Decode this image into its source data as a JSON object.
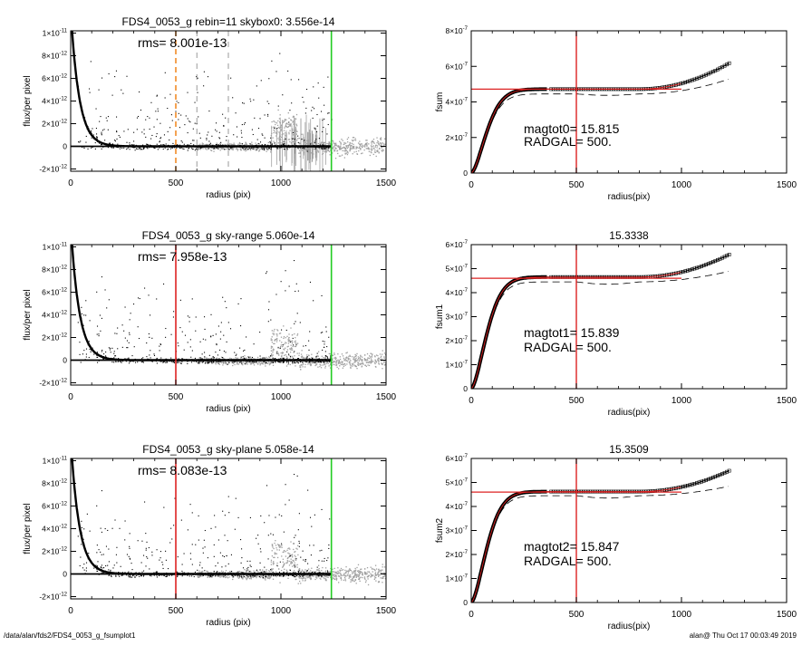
{
  "footer": {
    "path": "/data/alan/fds2/FDS4_0053_g_fsumplot1",
    "stamp": "alan@  Thu Oct 17 00:03:49 2019"
  },
  "colors": {
    "data": "#000000",
    "sky": "#a0a0a0",
    "mark_orange": "#f28c28",
    "mark_red": "#dd2222",
    "mark_green": "#22cc22",
    "fit": "#dd2222"
  },
  "chart_data": [
    {
      "type": "scatter",
      "title": "FDS4_0053_g rebin=11    skybox0:  3.556e-14",
      "annotations": [
        "rms= 8.001e-13"
      ],
      "xlabel": "radius (pix)",
      "ylabel": "flux/per pixel",
      "xlim": [
        0,
        1500
      ],
      "ylim": [
        -2.2e-12,
        1.02e-11
      ],
      "xticks": [
        0,
        500,
        1000,
        1500
      ],
      "xtick_labels": [
        "0",
        "500",
        "1000",
        "1500"
      ],
      "yticks": [
        -2e-12,
        0,
        2e-12,
        4e-12,
        6e-12,
        8e-12,
        1e-11
      ],
      "ytick_labels": [
        [
          "-2×10",
          "-12"
        ],
        [
          "0",
          ""
        ],
        [
          "2×10",
          "-12"
        ],
        [
          "4×10",
          "-12"
        ],
        [
          "6×10",
          "-12"
        ],
        [
          "8×10",
          "-12"
        ],
        [
          "1×10",
          "-11"
        ]
      ],
      "profile": {
        "amplitude": 1.2e-11,
        "scale_pix": 40
      },
      "vlines": [
        {
          "x": 500,
          "color": "orange",
          "style": "dashed"
        },
        {
          "x": 600,
          "color": "gray",
          "style": "dashed"
        },
        {
          "x": 750,
          "color": "gray",
          "style": "dashed"
        },
        {
          "x": 1240,
          "color": "green",
          "style": "solid"
        }
      ],
      "hline": {
        "y": 0,
        "x": [
          0,
          1240
        ]
      },
      "sky_start": 600,
      "sky_spread": 1.3e-12,
      "error_bars": true
    },
    {
      "type": "line",
      "title": "",
      "annotations": [
        "magtot0=  15.815",
        "RADGAL=    500."
      ],
      "xlabel": "radius(pix)",
      "ylabel": "fsum",
      "xlim": [
        0,
        1500
      ],
      "ylim": [
        0,
        8e-07
      ],
      "xticks": [
        0,
        500,
        1000,
        1500
      ],
      "xtick_labels": [
        "0",
        "500",
        "1000",
        "1500"
      ],
      "yticks": [
        0,
        2e-07,
        4e-07,
        6e-07,
        8e-07
      ],
      "ytick_labels": [
        [
          "0",
          ""
        ],
        [
          "2×10",
          "-7"
        ],
        [
          "4×10",
          "-7"
        ],
        [
          "6×10",
          "-7"
        ],
        [
          "8×10",
          "-7"
        ]
      ],
      "curve": {
        "plateau": 4.72e-07,
        "scale_pix": 95,
        "rise_start": 800,
        "rise_end": 1230,
        "rise_to": 6.2e-07
      },
      "dashed": {
        "plateau": 4.45e-07,
        "rise_end": 1230,
        "rise_to": 5.3e-07,
        "dip": 8e-09
      },
      "vline": {
        "x": 500
      },
      "hline": {
        "y": 4.72e-07,
        "x": [
          0,
          1000
        ]
      }
    },
    {
      "type": "scatter",
      "title": "FDS4_0053_g sky-range  5.060e-14",
      "annotations": [
        "rms= 7.958e-13"
      ],
      "xlabel": "radius (pix)",
      "ylabel": "flux/per pixel",
      "xlim": [
        0,
        1500
      ],
      "ylim": [
        -2.2e-12,
        1.02e-11
      ],
      "xticks": [
        0,
        500,
        1000,
        1500
      ],
      "xtick_labels": [
        "0",
        "500",
        "1000",
        "1500"
      ],
      "yticks": [
        -2e-12,
        0,
        2e-12,
        4e-12,
        6e-12,
        8e-12,
        1e-11
      ],
      "ytick_labels": [
        [
          "-2×10",
          "-12"
        ],
        [
          "0",
          ""
        ],
        [
          "2×10",
          "-12"
        ],
        [
          "4×10",
          "-12"
        ],
        [
          "6×10",
          "-12"
        ],
        [
          "8×10",
          "-12"
        ],
        [
          "1×10",
          "-11"
        ]
      ],
      "profile": {
        "amplitude": 1.2e-11,
        "scale_pix": 40
      },
      "vlines": [
        {
          "x": 500,
          "color": "red",
          "style": "solid"
        },
        {
          "x": 1240,
          "color": "green",
          "style": "solid"
        }
      ],
      "hline": {
        "y": 0,
        "x": [
          0,
          1240
        ]
      },
      "sky_start": 600,
      "sky_spread": 1.3e-12,
      "error_bars": false
    },
    {
      "type": "line",
      "title": "15.3338",
      "annotations": [
        "magtot1=  15.839",
        "RADGAL=    500."
      ],
      "xlabel": "radius(pix)",
      "ylabel": "fsum1",
      "xlim": [
        0,
        1500
      ],
      "ylim": [
        0,
        6e-07
      ],
      "xticks": [
        0,
        500,
        1000,
        1500
      ],
      "xtick_labels": [
        "0",
        "500",
        "1000",
        "1500"
      ],
      "yticks": [
        0,
        1e-07,
        2e-07,
        3e-07,
        4e-07,
        5e-07,
        6e-07
      ],
      "ytick_labels": [
        [
          "0",
          ""
        ],
        [
          "1×10",
          "-7"
        ],
        [
          "2×10",
          "-7"
        ],
        [
          "3×10",
          "-7"
        ],
        [
          "4×10",
          "-7"
        ],
        [
          "5×10",
          "-7"
        ],
        [
          "6×10",
          "-7"
        ]
      ],
      "curve": {
        "plateau": 4.65e-07,
        "scale_pix": 95,
        "rise_start": 800,
        "rise_end": 1230,
        "rise_to": 5.6e-07
      },
      "dashed": {
        "plateau": 4.45e-07,
        "rise_end": 1230,
        "rise_to": 4.9e-07,
        "dip": 1e-08
      },
      "vline": {
        "x": 500
      },
      "hline": {
        "y": 4.6e-07,
        "x": [
          0,
          1000
        ]
      }
    },
    {
      "type": "scatter",
      "title": "FDS4_0053_g sky-plane  5.058e-14",
      "annotations": [
        "rms= 8.083e-13"
      ],
      "xlabel": "radius (pix)",
      "ylabel": "flux/per pixel",
      "xlim": [
        0,
        1500
      ],
      "ylim": [
        -2.2e-12,
        1.02e-11
      ],
      "xticks": [
        0,
        500,
        1000,
        1500
      ],
      "xtick_labels": [
        "0",
        "500",
        "1000",
        "1500"
      ],
      "yticks": [
        -2e-12,
        0,
        2e-12,
        4e-12,
        6e-12,
        8e-12,
        1e-11
      ],
      "ytick_labels": [
        [
          "-2×10",
          "-12"
        ],
        [
          "0",
          ""
        ],
        [
          "2×10",
          "-12"
        ],
        [
          "4×10",
          "-12"
        ],
        [
          "6×10",
          "-12"
        ],
        [
          "8×10",
          "-12"
        ],
        [
          "1×10",
          "-11"
        ]
      ],
      "profile": {
        "amplitude": 1.2e-11,
        "scale_pix": 40
      },
      "vlines": [
        {
          "x": 500,
          "color": "red",
          "style": "solid"
        },
        {
          "x": 1240,
          "color": "green",
          "style": "solid"
        }
      ],
      "hline": {
        "y": 0,
        "x": [
          0,
          1240
        ]
      },
      "sky_start": 600,
      "sky_spread": 1.3e-12,
      "error_bars": false
    },
    {
      "type": "line",
      "title": "15.3509",
      "annotations": [
        "magtot2=  15.847",
        "RADGAL=    500."
      ],
      "xlabel": "radius(pix)",
      "ylabel": "fsum2",
      "xlim": [
        0,
        1500
      ],
      "ylim": [
        0,
        6e-07
      ],
      "xticks": [
        0,
        500,
        1000,
        1500
      ],
      "xtick_labels": [
        "0",
        "500",
        "1000",
        "1500"
      ],
      "yticks": [
        0,
        1e-07,
        2e-07,
        3e-07,
        4e-07,
        5e-07,
        6e-07
      ],
      "ytick_labels": [
        [
          "0",
          ""
        ],
        [
          "1×10",
          "-7"
        ],
        [
          "2×10",
          "-7"
        ],
        [
          "3×10",
          "-7"
        ],
        [
          "4×10",
          "-7"
        ],
        [
          "5×10",
          "-7"
        ],
        [
          "6×10",
          "-7"
        ]
      ],
      "curve": {
        "plateau": 4.62e-07,
        "scale_pix": 95,
        "rise_start": 800,
        "rise_end": 1230,
        "rise_to": 5.5e-07
      },
      "dashed": {
        "plateau": 4.45e-07,
        "rise_end": 1230,
        "rise_to": 4.85e-07,
        "dip": 1e-08
      },
      "vline": {
        "x": 500
      },
      "hline": {
        "y": 4.6e-07,
        "x": [
          0,
          1000
        ]
      }
    }
  ]
}
